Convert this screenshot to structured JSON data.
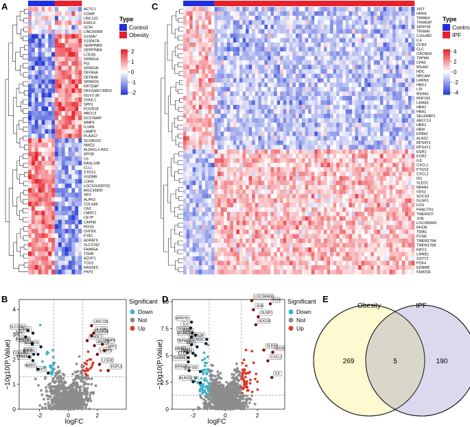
{
  "panels": {
    "a": {
      "letter": "A"
    },
    "b": {
      "letter": "B"
    },
    "c": {
      "letter": "C"
    },
    "d": {
      "letter": "D"
    },
    "e": {
      "letter": "E"
    }
  },
  "colors": {
    "control": "#1f2fe0",
    "disease": "#e8212a",
    "high": "#e8262e",
    "mid": "#ffffff",
    "low": "#2a3fd6",
    "down": "#3fb2c9",
    "not": "#8c8c8c",
    "up": "#d93a2b",
    "venn_left": "#fffad2",
    "venn_right": "#dcd8ee",
    "venn_overlap": "#d8d7c9"
  },
  "chart_data": [
    {
      "panel": "A",
      "type": "heatmap",
      "groups": [
        {
          "name": "Control",
          "columns": 8
        },
        {
          "name": "Obesity",
          "columns": 8
        }
      ],
      "legend_title": "Type",
      "legend_items": [
        "Control",
        "Obesity"
      ],
      "color_scale": {
        "min": -2,
        "max": 2,
        "ticks": [
          "2",
          "1",
          "0",
          "-1",
          "-2"
        ]
      },
      "genes": [
        "ACTC1",
        "COMP",
        "UNC13C",
        "EGFL6",
        "SCIN",
        "LINC00968",
        "S100A7",
        "S100A7A",
        "SERPINB3",
        "SERPINB4",
        "LCE3D",
        "SPRR1A",
        "PI3",
        "SPRR1B",
        "DEFB4A",
        "DEFB4B",
        "SPRR2G",
        "KRTDAP",
        "DKFZp667J0810",
        "IGLV1-36",
        "CHI3L1",
        "SPP1",
        "FCGR1B",
        "ABCC3",
        "DCSTAMP",
        "MMP9",
        "IL1RN",
        "LAMP3",
        "PLA2G7",
        "SCGB1D2",
        "NWD2",
        "ALDH1L1-AS2",
        "APOB",
        "C6",
        "RASL10B",
        "CLLL",
        "STOX1",
        "GSDMB",
        "LDHD",
        "LOC101928703",
        "MGC45800",
        "SPX",
        "ALPK3",
        "COL6A6",
        "CA3",
        "CMRT2",
        "CETP",
        "CAPN6",
        "RGS3",
        "CHODL",
        "EYA1",
        "AGPAT9",
        "SLC27A2",
        "FAM65A",
        "TSHR",
        "AZGP1",
        "TOX3",
        "RASSF5",
        "PKP2"
      ]
    },
    {
      "panel": "C",
      "type": "heatmap",
      "groups": [
        {
          "name": "Control",
          "columns": 10
        },
        {
          "name": "IPF",
          "columns": 64
        }
      ],
      "legend_title": "Type",
      "legend_items": [
        "Control",
        "IPF"
      ],
      "color_scale": {
        "min": -4,
        "max": 4,
        "ticks": [
          "4",
          "2",
          "0",
          "-2",
          "-4"
        ]
      },
      "genes": [
        "XIST",
        "HRH4",
        "TRIM64",
        "TRIM53P",
        "SPRY05",
        "TRIM49",
        "C10orf82",
        "IL4",
        "CCR3",
        "CLC",
        "CACNG6",
        "TRPM6",
        "CPA3",
        "MS4A2",
        "HDC",
        "NRCAM",
        "LRRN3",
        "HBG1",
        "LTF",
        "MS4A3",
        "RNF182",
        "LAMA3",
        "HBA2",
        "HBA1",
        "SELENBP1",
        "ABCC13",
        "HBD1",
        "HBM",
        "EPB42",
        "ALAS2",
        "RPS4Y2",
        "RPS4Y1",
        "EGR1",
        "EGR2",
        "IL8",
        "CXCL1",
        "PTGS2",
        "CXCL2",
        "ID1",
        "SLED1",
        "NR4A2",
        "G0S2",
        "SOCS3",
        "DUSP1",
        "FOS",
        "PHACTR1",
        "TMEM107",
        "JUN",
        "LOC399900",
        "RHOB",
        "TRIB1",
        "FOSB",
        "TMEM176A",
        "TMEM176B",
        "KIFC1",
        "LMNB1",
        "GSTT2",
        "PDK4",
        "EDNRB",
        "FAM20A"
      ]
    },
    {
      "panel": "B",
      "type": "scatter",
      "xlabel": "logFC",
      "ylabel": "−10g10(P.Value)",
      "xlim": [
        -3.4,
        4.0
      ],
      "ylim": [
        0,
        4.4
      ],
      "xticks": [
        -2,
        0,
        2
      ],
      "yticks": [
        0,
        1,
        2,
        3,
        4
      ],
      "thresholds": {
        "logfc": 1,
        "neglog10p": 1.3
      },
      "legend_title": "Significant",
      "legend_items": [
        "Down",
        "Not",
        "Up"
      ],
      "labels": [
        {
          "text": "SLC27A2",
          "x": -2.8,
          "y": 3.15
        },
        {
          "text": "SPX",
          "x": -2.95,
          "y": 2.9
        },
        {
          "text": "ETOX1",
          "x": -2.45,
          "y": 3.05
        },
        {
          "text": "RASSF5",
          "x": -2.5,
          "y": 2.65
        },
        {
          "text": "CA3",
          "x": -2.4,
          "y": 2.2
        },
        {
          "text": "AGPAT9",
          "x": -1.9,
          "y": 2.5
        },
        {
          "text": "CETP",
          "x": -2.5,
          "y": 2.6
        },
        {
          "text": "CHODL",
          "x": -2.1,
          "y": 2.2
        },
        {
          "text": "COL6A6",
          "x": -2.7,
          "y": 2.1
        },
        {
          "text": "FAM65A",
          "x": -2.45,
          "y": 1.95
        },
        {
          "text": "NWD2",
          "x": -2.1,
          "y": 1.6
        },
        {
          "text": "PKP2",
          "x": -1.4,
          "y": 1.45
        },
        {
          "text": "UNC13C",
          "x": 1.6,
          "y": 3.35
        },
        {
          "text": "IL1RN",
          "x": 1.75,
          "y": 3.05
        },
        {
          "text": "FCGR1B",
          "x": 1.6,
          "y": 2.95
        },
        {
          "text": "CHI3L1",
          "x": 1.3,
          "y": 2.75
        },
        {
          "text": "MMP9",
          "x": 2.35,
          "y": 2.6
        },
        {
          "text": "ABCC3",
          "x": 1.8,
          "y": 2.55
        },
        {
          "text": "LAMP3",
          "x": 2.0,
          "y": 2.2
        },
        {
          "text": "SPP1",
          "x": 2.5,
          "y": 2.35
        },
        {
          "text": "LCE3D",
          "x": 2.15,
          "y": 1.8
        },
        {
          "text": "EGFL6",
          "x": 2.75,
          "y": 1.55
        }
      ]
    },
    {
      "panel": "D",
      "type": "scatter",
      "xlabel": "logFC",
      "ylabel": "−10g10(P.Value)",
      "xlim": [
        -3.3,
        3.7
      ],
      "ylim": [
        0,
        10.2
      ],
      "xticks": [
        -2,
        0,
        2
      ],
      "yticks": [
        0,
        2.5,
        5,
        7.5,
        10
      ],
      "thresholds": {
        "logfc": 1,
        "neglog10p": 1.3
      },
      "legend_title": "Significant",
      "legend_items": [
        "Down",
        "Not",
        "Up"
      ],
      "labels": [
        {
          "text": "SPRY05",
          "x": -2.1,
          "y": 8.1
        },
        {
          "text": "IL4",
          "x": -2.15,
          "y": 7.55
        },
        {
          "text": "TRIM64",
          "x": -2.05,
          "y": 7.1
        },
        {
          "text": "CCR3",
          "x": -1.85,
          "y": 6.9
        },
        {
          "text": "MS4A2",
          "x": -2.1,
          "y": 6.7
        },
        {
          "text": "TRIM53P",
          "x": -1.15,
          "y": 6.5
        },
        {
          "text": "CACNG6",
          "x": -1.2,
          "y": 6.1
        },
        {
          "text": "TRPM6",
          "x": -2.1,
          "y": 6.0
        },
        {
          "text": "HDC",
          "x": -1.75,
          "y": 5.8
        },
        {
          "text": "HBG1",
          "x": -2.35,
          "y": 5.25
        },
        {
          "text": "HBA2",
          "x": -2.0,
          "y": 5.2
        },
        {
          "text": "HBA1",
          "x": -1.85,
          "y": 5.0
        },
        {
          "text": "CLC",
          "x": -2.3,
          "y": 4.8
        },
        {
          "text": "TRIM49",
          "x": -2.3,
          "y": 4.4
        },
        {
          "text": "EPB42",
          "x": -2.25,
          "y": 3.6
        },
        {
          "text": "RNF182",
          "x": -1.55,
          "y": 3.5
        },
        {
          "text": "ALAS2",
          "x": -2.0,
          "y": 2.55
        },
        {
          "text": "LTF",
          "x": -1.55,
          "y": 2.45
        },
        {
          "text": "LOC399900",
          "x": 1.65,
          "y": 10.1
        },
        {
          "text": "FOS",
          "x": 2.8,
          "y": 9.8
        },
        {
          "text": "JUN",
          "x": 1.75,
          "y": 9.25
        },
        {
          "text": "DUSP1",
          "x": 2.05,
          "y": 8.6
        },
        {
          "text": "SOCS3",
          "x": 1.9,
          "y": 7.85
        },
        {
          "text": "SLED1",
          "x": 2.4,
          "y": 5.5
        },
        {
          "text": "G0S2",
          "x": 2.95,
          "y": 5.3
        },
        {
          "text": "CXCL2",
          "x": 2.65,
          "y": 4.5
        },
        {
          "text": "IL8",
          "x": 2.9,
          "y": 2.95
        }
      ]
    },
    {
      "panel": "E",
      "type": "venn",
      "sets": [
        {
          "name": "Obesity",
          "only": 269
        },
        {
          "name": "IPF",
          "only": 190
        }
      ],
      "overlap": 5
    }
  ]
}
